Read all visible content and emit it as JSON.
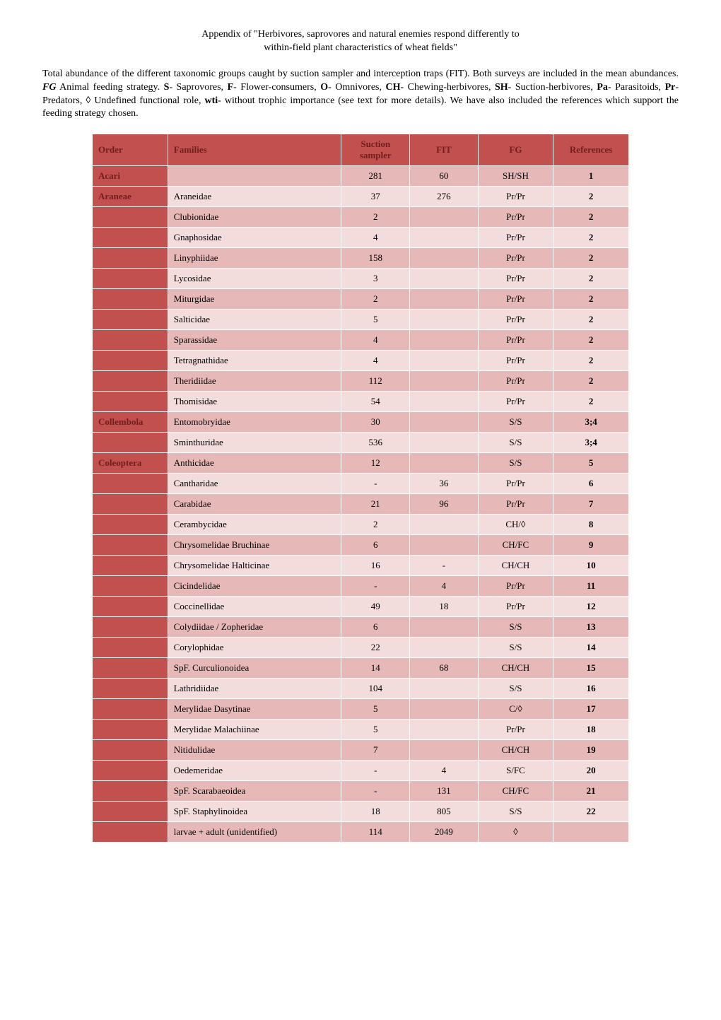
{
  "title_line1": "Appendix of \"Herbivores, saprovores and natural enemies respond differently to",
  "title_line2": "within-field plant characteristics of wheat fields\"",
  "intro_html": "Total abundance of the different taxonomic groups caught by suction sampler and interception traps (FIT). Both surveys are included in the mean abundances. <span class='bold-it'>FG</span> Animal feeding strategy. <span class='bold'>S</span>- Saprovores, <span class='bold'>F</span>- Flower-consumers, <span class='bold'>O</span>- Omnivores, <span class='bold'>CH</span>- Chewing-herbivores, <span class='bold'>SH</span>- Suction-herbivores, <span class='bold'>Pa</span>- Parasitoids, <span class='bold'>Pr</span>- Predators, ◊ Undefined functional role, <span class='bold'>wti</span>- without trophic importance (see text for more details). We have also included the references which support the feeding strategy chosen.",
  "colors": {
    "header_bg": "#c1504f",
    "header_text": "#711f1e",
    "order_cell_bg": "#c1504f",
    "order_cell_text": "#711f1e",
    "row_dark": "#e6b9b8",
    "row_light": "#f2dddc"
  },
  "headers": {
    "order": "Order",
    "families": "Families",
    "suction": "Suction sampler",
    "fit": "FIT",
    "fg": "FG",
    "references": "References"
  },
  "rows": [
    {
      "order": "Acari",
      "fam": "",
      "suc": "281",
      "fit": "60",
      "fg": "SH/SH",
      "ref": "1",
      "shade": "dark"
    },
    {
      "order": "Araneae",
      "fam": "Araneidae",
      "suc": "37",
      "fit": "276",
      "fg": "Pr/Pr",
      "ref": "2",
      "shade": "light"
    },
    {
      "order": "",
      "fam": "Clubionidae",
      "suc": "2",
      "fit": "",
      "fg": "Pr/Pr",
      "ref": "2",
      "shade": "dark"
    },
    {
      "order": "",
      "fam": "Gnaphosidae",
      "suc": "4",
      "fit": "",
      "fg": "Pr/Pr",
      "ref": "2",
      "shade": "light"
    },
    {
      "order": "",
      "fam": "Linyphiidae",
      "suc": "158",
      "fit": "",
      "fg": "Pr/Pr",
      "ref": "2",
      "shade": "dark"
    },
    {
      "order": "",
      "fam": "Lycosidae",
      "suc": "3",
      "fit": "",
      "fg": "Pr/Pr",
      "ref": "2",
      "shade": "light"
    },
    {
      "order": "",
      "fam": "Miturgidae",
      "suc": "2",
      "fit": "",
      "fg": "Pr/Pr",
      "ref": "2",
      "shade": "dark"
    },
    {
      "order": "",
      "fam": "Salticidae",
      "suc": "5",
      "fit": "",
      "fg": "Pr/Pr",
      "ref": "2",
      "shade": "light"
    },
    {
      "order": "",
      "fam": "Sparassidae",
      "suc": "4",
      "fit": "",
      "fg": "Pr/Pr",
      "ref": "2",
      "shade": "dark"
    },
    {
      "order": "",
      "fam": "Tetragnathidae",
      "suc": "4",
      "fit": "",
      "fg": "Pr/Pr",
      "ref": "2",
      "shade": "light"
    },
    {
      "order": "",
      "fam": "Theridiidae",
      "suc": "112",
      "fit": "",
      "fg": "Pr/Pr",
      "ref": "2",
      "shade": "dark"
    },
    {
      "order": "",
      "fam": "Thomisidae",
      "suc": "54",
      "fit": "",
      "fg": "Pr/Pr",
      "ref": "2",
      "shade": "light"
    },
    {
      "order": "Collembola",
      "fam": "Entomobryidae",
      "suc": "30",
      "fit": "",
      "fg": "S/S",
      "ref": "3;4",
      "shade": "dark"
    },
    {
      "order": "",
      "fam": "Sminthuridae",
      "suc": "536",
      "fit": "",
      "fg": "S/S",
      "ref": "3;4",
      "shade": "light"
    },
    {
      "order": "Coleoptera",
      "fam": "Anthicidae",
      "suc": "12",
      "fit": "",
      "fg": "S/S",
      "ref": "5",
      "shade": "dark"
    },
    {
      "order": "",
      "fam": "Cantharidae",
      "suc": "-",
      "fit": "36",
      "fg": "Pr/Pr",
      "ref": "6",
      "shade": "light"
    },
    {
      "order": "",
      "fam": "Carabidae",
      "suc": "21",
      "fit": "96",
      "fg": "Pr/Pr",
      "ref": "7",
      "shade": "dark"
    },
    {
      "order": "",
      "fam": "Cerambycidae",
      "suc": "2",
      "fit": "",
      "fg": "CH/◊",
      "ref": "8",
      "shade": "light"
    },
    {
      "order": "",
      "fam": "Chrysomelidae Bruchinae",
      "suc": "6",
      "fit": "",
      "fg": "CH/FC",
      "ref": "9",
      "shade": "dark"
    },
    {
      "order": "",
      "fam": "Chrysomelidae Halticinae",
      "suc": "16",
      "fit": "-",
      "fg": "CH/CH",
      "ref": "10",
      "shade": "light"
    },
    {
      "order": "",
      "fam": "Cicindelidae",
      "suc": "-",
      "fit": "4",
      "fg": "Pr/Pr",
      "ref": "11",
      "shade": "dark"
    },
    {
      "order": "",
      "fam": "Coccinellidae",
      "suc": "49",
      "fit": "18",
      "fg": "Pr/Pr",
      "ref": "12",
      "shade": "light"
    },
    {
      "order": "",
      "fam": "Colydiidae / Zopheridae",
      "suc": "6",
      "fit": "",
      "fg": "S/S",
      "ref": "13",
      "shade": "dark"
    },
    {
      "order": "",
      "fam": "Corylophidae",
      "suc": "22",
      "fit": "",
      "fg": "S/S",
      "ref": "14",
      "shade": "light"
    },
    {
      "order": "",
      "fam": "SpF. Curculionoidea",
      "suc": "14",
      "fit": "68",
      "fg": "CH/CH",
      "ref": "15",
      "shade": "dark"
    },
    {
      "order": "",
      "fam": "Lathridiidae",
      "suc": "104",
      "fit": "",
      "fg": "S/S",
      "ref": "16",
      "shade": "light"
    },
    {
      "order": "",
      "fam": "Merylidae Dasytinae",
      "suc": "5",
      "fit": "",
      "fg": "C/◊",
      "ref": "17",
      "shade": "dark"
    },
    {
      "order": "",
      "fam": "Merylidae Malachiinae",
      "suc": "5",
      "fit": "",
      "fg": "Pr/Pr",
      "ref": "18",
      "shade": "light"
    },
    {
      "order": "",
      "fam": "Nitidulidae",
      "suc": "7",
      "fit": "",
      "fg": "CH/CH",
      "ref": "19",
      "shade": "dark"
    },
    {
      "order": "",
      "fam": "Oedemeridae",
      "suc": "-",
      "fit": "4",
      "fg": "S/FC",
      "ref": "20",
      "shade": "light"
    },
    {
      "order": "",
      "fam": "SpF. Scarabaeoidea",
      "suc": "-",
      "fit": "131",
      "fg": "CH/FC",
      "ref": "21",
      "shade": "dark"
    },
    {
      "order": "",
      "fam": "SpF. Staphylinoidea",
      "suc": "18",
      "fit": "805",
      "fg": "S/S",
      "ref": "22",
      "shade": "light"
    },
    {
      "order": "",
      "fam": "larvae + adult (unidentified)",
      "suc": "114",
      "fit": "2049",
      "fg": "◊",
      "ref": "",
      "shade": "dark"
    }
  ]
}
